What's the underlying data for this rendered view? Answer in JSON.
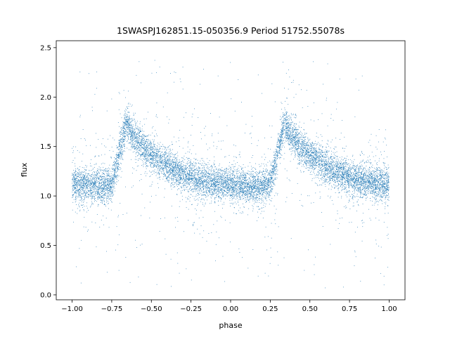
{
  "chart_data": {
    "type": "scatter",
    "title": "1SWASPJ162851.15-050356.9 Period 51752.55078s",
    "xlabel": "phase",
    "ylabel": "flux",
    "xlim": [
      -1.1,
      1.1
    ],
    "ylim": [
      -0.05,
      2.57
    ],
    "xticks": [
      -1.0,
      -0.75,
      -0.5,
      -0.25,
      0.0,
      0.25,
      0.5,
      0.75,
      1.0
    ],
    "xtick_labels": [
      "−1.00",
      "−0.75",
      "−0.50",
      "−0.25",
      "0.00",
      "0.25",
      "0.50",
      "0.75",
      "1.00"
    ],
    "yticks": [
      0.0,
      0.5,
      1.0,
      1.5,
      2.0,
      2.5
    ],
    "ytick_labels": [
      "0.0",
      "0.5",
      "1.0",
      "1.5",
      "2.0",
      "2.5"
    ],
    "grid": false,
    "marker_color": "#1f77b4",
    "light_curve": {
      "phase": [
        -1.0,
        -0.9,
        -0.8,
        -0.75,
        -0.72,
        -0.68,
        -0.66,
        -0.62,
        -0.55,
        -0.5,
        -0.45,
        -0.4,
        -0.3,
        -0.2,
        -0.1,
        0.0,
        0.1,
        0.2,
        0.25,
        0.28,
        0.32,
        0.34,
        0.38,
        0.45,
        0.5,
        0.55,
        0.6,
        0.7,
        0.8,
        0.9,
        1.0
      ],
      "flux": [
        1.12,
        1.1,
        1.1,
        1.12,
        1.3,
        1.6,
        1.75,
        1.62,
        1.48,
        1.42,
        1.36,
        1.3,
        1.22,
        1.16,
        1.13,
        1.12,
        1.1,
        1.1,
        1.12,
        1.3,
        1.6,
        1.75,
        1.62,
        1.48,
        1.42,
        1.36,
        1.3,
        1.22,
        1.16,
        1.13,
        1.12
      ]
    }
  }
}
